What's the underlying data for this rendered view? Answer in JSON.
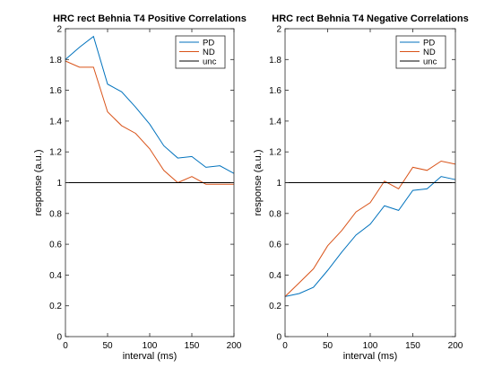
{
  "colors": {
    "PD": "#0072BD",
    "ND": "#D95319",
    "unc": "#000000"
  },
  "chart_data": [
    {
      "type": "line",
      "title": "HRC rect Behnia T4 Positive Correlations",
      "xlabel": "interval (ms)",
      "ylabel": "response (a.u.)",
      "xlim": [
        0,
        200
      ],
      "ylim": [
        0,
        2
      ],
      "xticks": [
        "0",
        "50",
        "100",
        "150",
        "200"
      ],
      "yticks": [
        "0",
        "0.2",
        "0.4",
        "0.6",
        "0.8",
        "1",
        "1.2",
        "1.4",
        "1.6",
        "1.8",
        "2"
      ],
      "legend_position": "top-right",
      "legend": [
        "PD",
        "ND",
        "unc"
      ],
      "x": [
        0,
        16.7,
        33.3,
        50,
        66.7,
        83.3,
        100,
        116.7,
        133.3,
        150,
        166.7,
        183.3,
        200
      ],
      "series": [
        {
          "name": "PD",
          "values": [
            1.8,
            1.88,
            1.95,
            1.64,
            1.59,
            1.49,
            1.38,
            1.24,
            1.16,
            1.17,
            1.1,
            1.11,
            1.06
          ]
        },
        {
          "name": "ND",
          "values": [
            1.79,
            1.75,
            1.75,
            1.46,
            1.37,
            1.32,
            1.22,
            1.08,
            1.0,
            1.04,
            0.99,
            0.99,
            0.99
          ]
        },
        {
          "name": "unc",
          "values": [
            1,
            1,
            1,
            1,
            1,
            1,
            1,
            1,
            1,
            1,
            1,
            1,
            1
          ]
        }
      ]
    },
    {
      "type": "line",
      "title": "HRC rect Behnia T4 Negative Correlations",
      "xlabel": "interval (ms)",
      "ylabel": "response (a.u.)",
      "xlim": [
        0,
        200
      ],
      "ylim": [
        0,
        2
      ],
      "xticks": [
        "0",
        "50",
        "100",
        "150",
        "200"
      ],
      "yticks": [
        "0",
        "0.2",
        "0.4",
        "0.6",
        "0.8",
        "1",
        "1.2",
        "1.4",
        "1.6",
        "1.8",
        "2"
      ],
      "legend_position": "top-right",
      "legend": [
        "PD",
        "ND",
        "unc"
      ],
      "x": [
        0,
        16.7,
        33.3,
        50,
        66.7,
        83.3,
        100,
        116.7,
        133.3,
        150,
        166.7,
        183.3,
        200
      ],
      "series": [
        {
          "name": "PD",
          "values": [
            0.26,
            0.28,
            0.32,
            0.43,
            0.55,
            0.66,
            0.73,
            0.85,
            0.82,
            0.95,
            0.96,
            1.04,
            1.02
          ]
        },
        {
          "name": "ND",
          "values": [
            0.26,
            0.35,
            0.44,
            0.59,
            0.69,
            0.81,
            0.87,
            1.01,
            0.96,
            1.1,
            1.08,
            1.14,
            1.12
          ]
        },
        {
          "name": "unc",
          "values": [
            1,
            1,
            1,
            1,
            1,
            1,
            1,
            1,
            1,
            1,
            1,
            1,
            1
          ]
        }
      ]
    }
  ]
}
